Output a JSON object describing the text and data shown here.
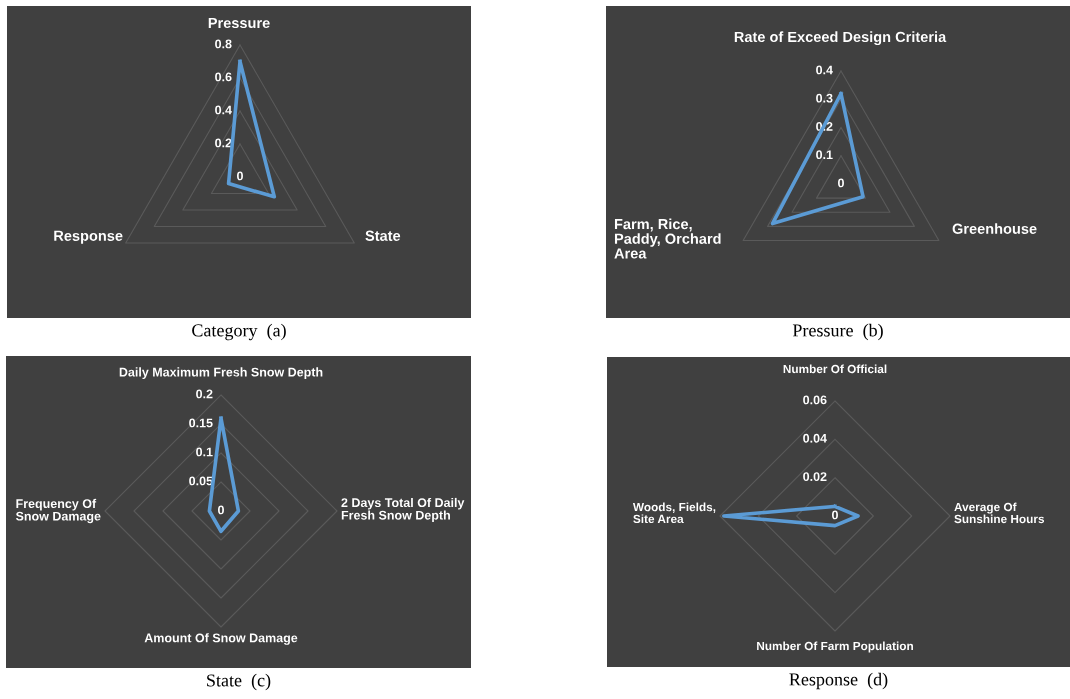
{
  "chart_data": [
    {
      "type": "radar",
      "categories": [
        "Pressure",
        "State",
        "Response"
      ],
      "series": [
        {
          "color": "#5b9bd5",
          "values": [
            0.7,
            0.24,
            0.08
          ]
        }
      ],
      "ylim": [
        0,
        0.8
      ],
      "yticks": [
        0,
        0.2,
        0.4,
        0.6,
        0.8
      ],
      "grid": true,
      "annotations": [
        "Category  (a)"
      ]
    },
    {
      "type": "radar",
      "categories": [
        "Rate of Exceed Design Criteria",
        "Greenhouse",
        "Farm, Rice,\nPaddy, Orchard\nArea"
      ],
      "series": [
        {
          "color": "#5b9bd5",
          "values": [
            0.32,
            0.09,
            0.28
          ]
        }
      ],
      "ylim": [
        0,
        0.4
      ],
      "yticks": [
        0,
        0.1,
        0.2,
        0.3,
        0.4
      ],
      "grid": true,
      "annotations": [
        "Pressure  (b)"
      ]
    },
    {
      "type": "radar",
      "categories": [
        "Daily Maximum Fresh Snow Depth",
        "2 Days Total Of Daily\nFresh Snow Depth",
        "Amount Of Snow Damage",
        "Frequency Of\nSnow Damage"
      ],
      "series": [
        {
          "color": "#5b9bd5",
          "values": [
            0.16,
            0.03,
            0.035,
            0.02
          ]
        }
      ],
      "ylim": [
        0,
        0.2
      ],
      "yticks": [
        0,
        0.05,
        0.1,
        0.15,
        0.2
      ],
      "grid": true,
      "annotations": [
        "State  (c)"
      ]
    },
    {
      "type": "radar",
      "categories": [
        "Number Of Official",
        "Average Of\nSunshine Hours",
        "Number Of Farm Population",
        "Woods, Fields,\nSite Area"
      ],
      "series": [
        {
          "color": "#5b9bd5",
          "values": [
            0.005,
            0.012,
            0.005,
            0.058
          ]
        }
      ],
      "ylim": [
        0,
        0.06
      ],
      "yticks": [
        0,
        0.02,
        0.04,
        0.06
      ],
      "grid": true,
      "annotations": [
        "Response  (d)"
      ]
    }
  ]
}
